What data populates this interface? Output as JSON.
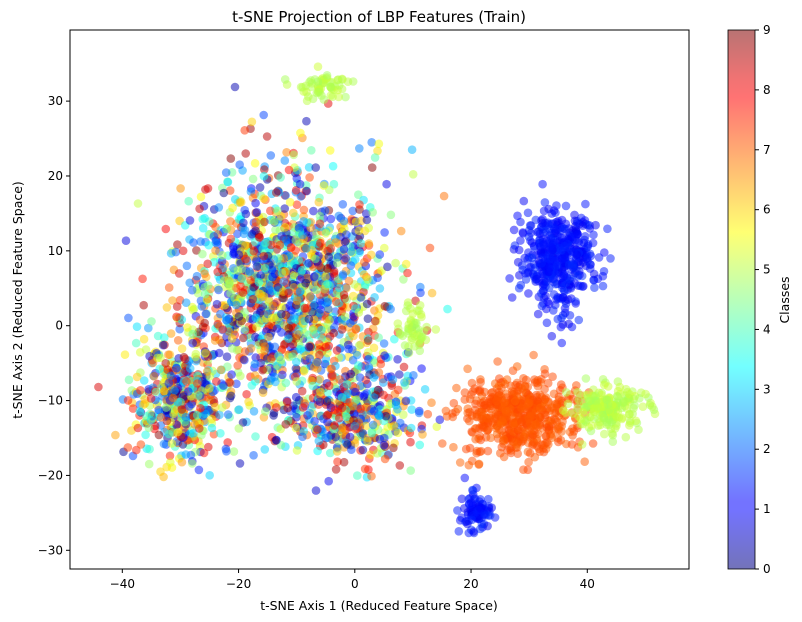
{
  "chart_data": {
    "type": "scatter",
    "title": "t-SNE Projection of LBP Features (Train)",
    "xlabel": "t-SNE Axis 1 (Reduced Feature Space)",
    "ylabel": "t-SNE Axis 2 (Reduced Feature Space)",
    "xlim": [
      -49,
      57.5
    ],
    "ylim": [
      -32.5,
      39.5
    ],
    "xticks": [
      -40,
      -20,
      0,
      20,
      40
    ],
    "yticks": [
      -30,
      -20,
      -10,
      0,
      10,
      20,
      30
    ],
    "xtick_labels": [
      "−40",
      "−20",
      "0",
      "20",
      "40"
    ],
    "ytick_labels": [
      "−30",
      "−20",
      "−10",
      "0",
      "10",
      "20",
      "30"
    ],
    "grid": false,
    "colormap": "jet",
    "marker_alpha": 0.5,
    "colorbar": {
      "label": "Classes",
      "range": [
        0,
        9
      ],
      "ticks": [
        "0",
        "1",
        "2",
        "3",
        "4",
        "5",
        "6",
        "7",
        "8",
        "9"
      ]
    },
    "clusters": [
      {
        "class_range": [
          0,
          9
        ],
        "center": [
          -12,
          5
        ],
        "spread": [
          16,
          14
        ],
        "approx_points": 1500
      },
      {
        "class_range": [
          0,
          9
        ],
        "center": [
          -30,
          -10
        ],
        "spread": [
          8,
          7
        ],
        "approx_points": 450
      },
      {
        "class_range": [
          0,
          9
        ],
        "center": [
          0,
          -12
        ],
        "spread": [
          10,
          6
        ],
        "approx_points": 400
      },
      {
        "class_range": [
          1,
          1.5
        ],
        "center": [
          35,
          9
        ],
        "spread": [
          5.5,
          6
        ],
        "approx_points": 450
      },
      {
        "class_range": [
          1,
          1.5
        ],
        "center": [
          21,
          -25
        ],
        "spread": [
          2.5,
          2.5
        ],
        "approx_points": 90
      },
      {
        "class_range": [
          7,
          7.3
        ],
        "center": [
          28,
          -12
        ],
        "spread": [
          9,
          4.5
        ],
        "approx_points": 550
      },
      {
        "class_range": [
          4.8,
          5.2
        ],
        "center": [
          44,
          -11
        ],
        "spread": [
          5,
          3
        ],
        "approx_points": 200
      },
      {
        "class_range": [
          4.8,
          5.2
        ],
        "center": [
          -6,
          32
        ],
        "spread": [
          5,
          2
        ],
        "approx_points": 60
      },
      {
        "class_range": [
          4.8,
          5.2
        ],
        "center": [
          10,
          0
        ],
        "spread": [
          3,
          3
        ],
        "approx_points": 50
      }
    ]
  }
}
